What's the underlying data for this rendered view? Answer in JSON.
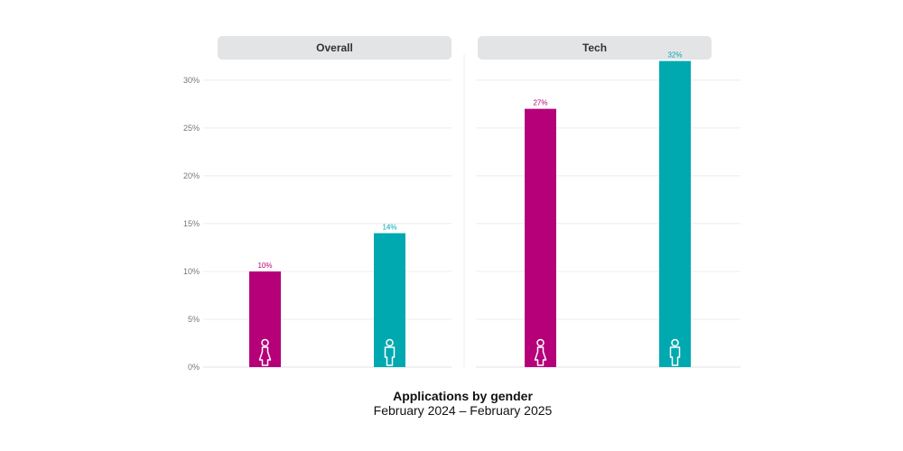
{
  "colors": {
    "women": "#b5007a",
    "men": "#00a9b0",
    "panel_header_bg": "#e3e4e6",
    "grid": "#ececec",
    "tick_text": "#777777",
    "header_text": "#333333"
  },
  "chart_data": [
    {
      "type": "bar",
      "title": "Overall",
      "categories": [
        "women",
        "men"
      ],
      "values": [
        10,
        14
      ],
      "data_labels": [
        "10%",
        "14%"
      ],
      "icons": [
        "female-icon",
        "male-icon"
      ],
      "ylim": [
        0,
        33
      ],
      "yticks": [
        0,
        5,
        10,
        15,
        20,
        25,
        30
      ],
      "ytick_labels": [
        "0%",
        "5%",
        "10%",
        "15%",
        "20%",
        "25%",
        "30%"
      ],
      "grid": true
    },
    {
      "type": "bar",
      "title": "Tech",
      "categories": [
        "women",
        "men"
      ],
      "values": [
        27,
        32
      ],
      "data_labels": [
        "27%",
        "32%"
      ],
      "icons": [
        "female-icon",
        "male-icon"
      ],
      "ylim": [
        0,
        33
      ],
      "yticks": [
        0,
        5,
        10,
        15,
        20,
        25,
        30
      ],
      "grid": true
    }
  ],
  "caption": {
    "title": "Applications by gender",
    "subtitle": "February 2024 – February 2025"
  }
}
